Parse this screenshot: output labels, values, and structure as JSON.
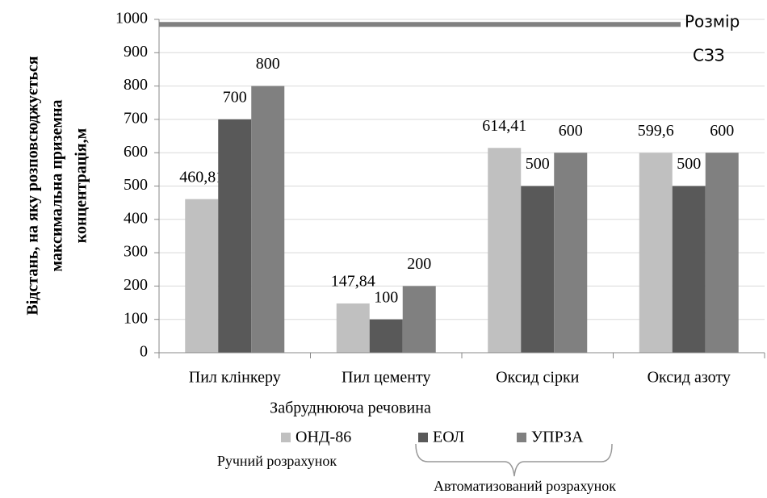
{
  "chart_data": {
    "type": "bar",
    "categories": [
      "Пил клінкеру",
      "Пил цементу",
      "Оксид сірки",
      "Оксид азоту"
    ],
    "series": [
      {
        "name": "ОНД-86",
        "color": "#c0c0c0",
        "values": [
          460.81,
          147.84,
          614.41,
          599.6
        ],
        "value_labels": [
          "460,81",
          "147,84",
          "614,41",
          "599,6"
        ]
      },
      {
        "name": "ЕОЛ",
        "color": "#595959",
        "values": [
          700,
          100,
          500,
          500
        ]
      },
      {
        "name": "УПРЗА",
        "color": "#808080",
        "values": [
          800,
          200,
          600,
          600
        ]
      }
    ],
    "ylim": [
      0,
      1000
    ],
    "yticks": [
      0,
      100,
      200,
      300,
      400,
      500,
      600,
      700,
      800,
      900,
      1000
    ],
    "grid": true,
    "x_label": "Забруднююча речовина",
    "y_label": [
      "Відстань, на яку розповсюджується",
      "максимальна приземна",
      "концентрація,м"
    ],
    "reference_line": {
      "value": 985,
      "color": "#808080",
      "label": [
        "Розмір",
        "СЗЗ"
      ]
    },
    "legend_groups": [
      "Ручний розрахунок",
      "Автоматизований  розрахунок"
    ]
  }
}
